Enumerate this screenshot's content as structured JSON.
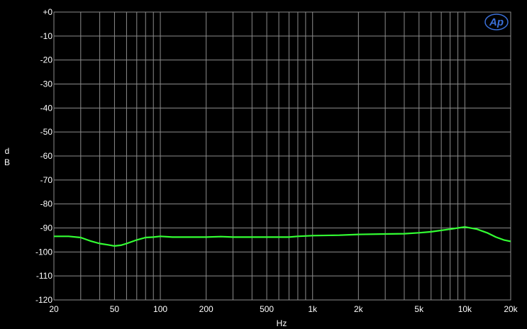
{
  "chart_data": {
    "type": "line",
    "title": "",
    "xlabel": "Hz",
    "ylabel": "dB",
    "xscale": "log",
    "xlim": [
      20,
      20000
    ],
    "ylim": [
      -120,
      0
    ],
    "grid": true,
    "x_ticks": [
      20,
      50,
      100,
      200,
      500,
      1000,
      2000,
      5000,
      10000,
      20000
    ],
    "x_tick_labels": [
      "20",
      "50",
      "100",
      "200",
      "500",
      "1k",
      "2k",
      "5k",
      "10k",
      "20k"
    ],
    "y_ticks": [
      0,
      -10,
      -20,
      -30,
      -40,
      -50,
      -60,
      -70,
      -80,
      -90,
      -100,
      -110,
      -120
    ],
    "y_tick_labels": [
      "+0",
      "-10",
      "-20",
      "-30",
      "-40",
      "-50",
      "-60",
      "-70",
      "-80",
      "-90",
      "-100",
      "-110",
      "-120"
    ],
    "series": [
      {
        "color": "#33ff33",
        "x": [
          20,
          25,
          30,
          35,
          40,
          45,
          50,
          55,
          60,
          70,
          80,
          90,
          100,
          120,
          150,
          200,
          250,
          300,
          400,
          500,
          700,
          800,
          1000,
          1500,
          2000,
          3000,
          4000,
          5000,
          6000,
          7000,
          8000,
          9000,
          10000,
          12000,
          14000,
          16000,
          18000,
          20000
        ],
        "y": [
          -93.5,
          -93.5,
          -94,
          -95.5,
          -96.5,
          -97,
          -97.5,
          -97.2,
          -96.5,
          -95,
          -94,
          -93.8,
          -93.5,
          -93.8,
          -93.8,
          -93.8,
          -93.6,
          -93.8,
          -93.8,
          -93.8,
          -93.8,
          -93.5,
          -93.2,
          -93,
          -92.7,
          -92.5,
          -92.4,
          -92,
          -91.6,
          -91,
          -90.5,
          -90,
          -89.6,
          -90.5,
          -92,
          -93.8,
          -95,
          -95.6
        ]
      }
    ]
  },
  "logo": {
    "text": "Ap",
    "color": "#3a6fd8"
  },
  "colors": {
    "background": "#000000",
    "grid": "#8c8c8c",
    "text": "#ffffff",
    "trace": "#33ff33"
  }
}
